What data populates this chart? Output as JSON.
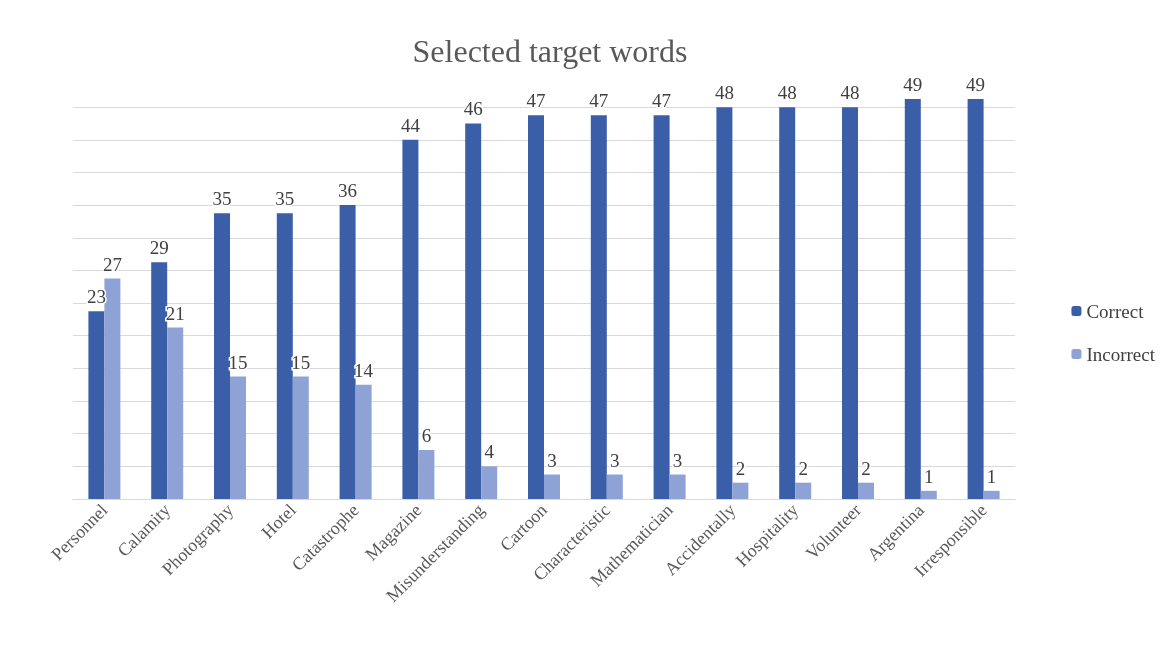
{
  "chart_data": {
    "type": "bar",
    "title": "Selected target words",
    "categories": [
      "Personnel",
      "Calamity",
      "Photography",
      "Hotel",
      "Catastrophe",
      "Magazine",
      "Misunderstanding",
      "Cartoon",
      "Characteristic",
      "Mathematician",
      "Accidentally",
      "Hospitality",
      "Volunteer",
      "Argentina",
      "Irresponsible"
    ],
    "series": [
      {
        "name": "Correct",
        "color": "#3a5fa8",
        "values": [
          23,
          29,
          35,
          35,
          36,
          44,
          46,
          47,
          47,
          47,
          48,
          48,
          48,
          49,
          49
        ]
      },
      {
        "name": "Incorrect",
        "color": "#8fa2d6",
        "values": [
          27,
          21,
          15,
          15,
          14,
          6,
          4,
          3,
          3,
          3,
          2,
          2,
          2,
          1,
          1
        ]
      }
    ],
    "yticks": [
      {
        "value": 0,
        "label": null
      },
      {
        "value": 4,
        "label": null
      },
      {
        "value": 8,
        "label": null
      },
      {
        "value": 12,
        "label": null
      },
      {
        "value": 16,
        "label": null
      },
      {
        "value": 20,
        "label": null
      },
      {
        "value": 24,
        "label": null
      },
      {
        "value": 28,
        "label": null
      },
      {
        "value": 32,
        "label": null
      },
      {
        "value": 36,
        "label": null
      },
      {
        "value": 40,
        "label": null
      },
      {
        "value": 44,
        "label": null
      },
      {
        "value": 48,
        "label": null
      }
    ],
    "tick_labels": "x",
    "grid": "y",
    "legend": "right",
    "data_labels": true
  }
}
